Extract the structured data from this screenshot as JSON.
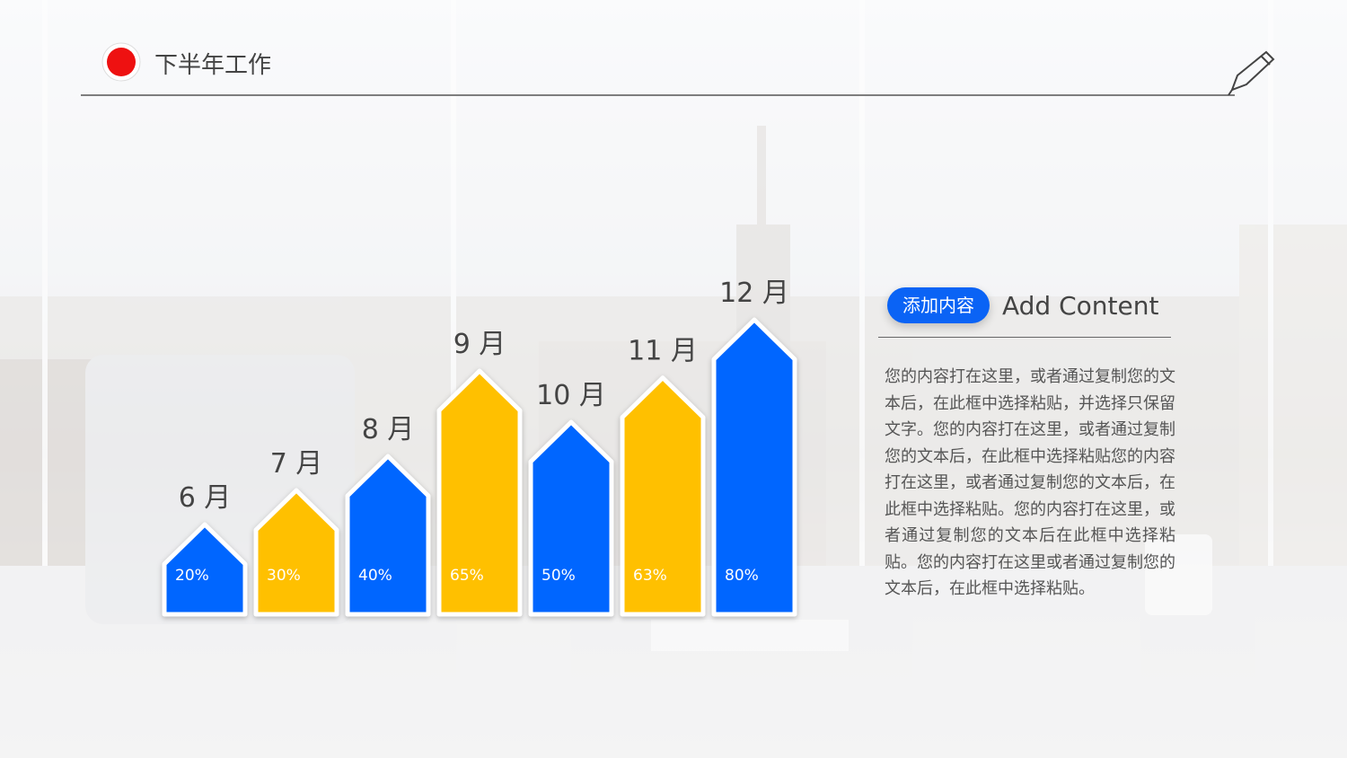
{
  "header": {
    "title": "下半年工作"
  },
  "chart_data": {
    "type": "bar",
    "categories": [
      "6 月",
      "7 月",
      "8 月",
      "9 月",
      "10 月",
      "11 月",
      "12 月"
    ],
    "values": [
      20,
      30,
      40,
      65,
      50,
      63,
      80
    ],
    "value_labels": [
      "20%",
      "30%",
      "40%",
      "65%",
      "50%",
      "63%",
      "80%"
    ],
    "colors": [
      "#0066ff",
      "#ffc000",
      "#0066ff",
      "#ffc000",
      "#0066ff",
      "#ffc000",
      "#0066ff"
    ]
  },
  "side": {
    "tag": "添加内容",
    "heading": "Add Content",
    "body": "您的内容打在这里，或者通过复制您的文本后，在此框中选择粘贴，并选择只保留文字。您的内容打在这里，或者通过复制您的文本后，在此框中选择粘贴您的内容打在这里，或者通过复制您的文本后，在此框中选择粘贴。您的内容打在这里，或者通过复制您的文本后在此框中选择粘贴。您的内容打在这里或者通过复制您的文本后，在此框中选择粘贴。"
  }
}
